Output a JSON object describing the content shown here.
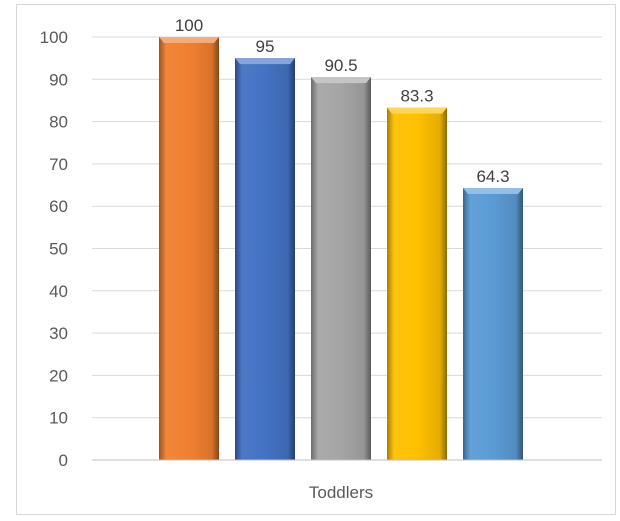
{
  "chart_data": {
    "type": "bar",
    "categories": [
      "Toddlers"
    ],
    "series": [
      {
        "values": [
          100
        ],
        "color": "#F08030"
      },
      {
        "values": [
          95
        ],
        "color": "#4472C4"
      },
      {
        "values": [
          90.5
        ],
        "color": "#A5A5A5"
      },
      {
        "values": [
          83.3
        ],
        "color": "#FFC000"
      },
      {
        "values": [
          64.3
        ],
        "color": "#5B9BD5"
      }
    ],
    "data_labels": [
      "100",
      "95",
      "90.5",
      "83.3",
      "64.3"
    ],
    "yticks": [
      "0",
      "10",
      "20",
      "30",
      "40",
      "50",
      "60",
      "70",
      "80",
      "90",
      "100"
    ],
    "ylim": [
      0,
      100
    ],
    "grid": true,
    "legend": "none",
    "title": "",
    "xlabel": "",
    "ylabel": ""
  }
}
